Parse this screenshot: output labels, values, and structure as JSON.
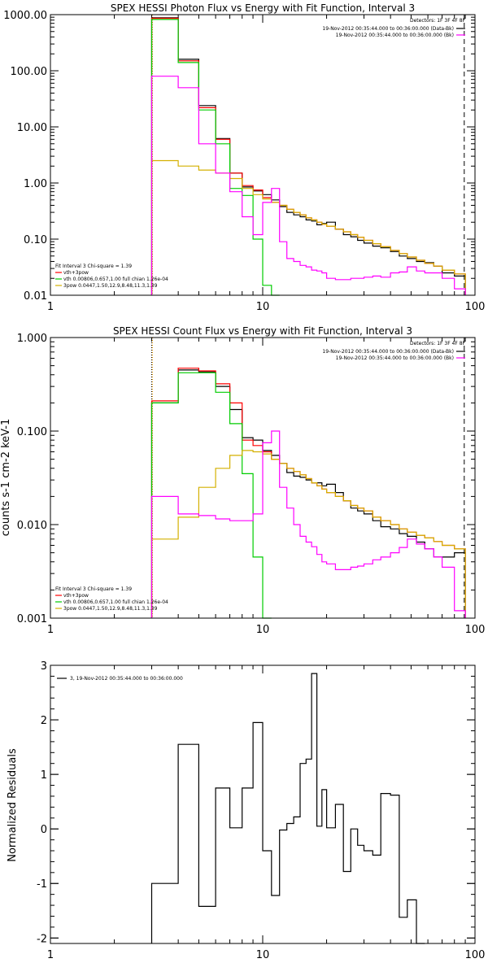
{
  "chart_data": [
    {
      "type": "line",
      "title": "SPEX HESSI Photon Flux vs Energy with Fit Function, Interval 3",
      "xlabel": "",
      "ylabel": "",
      "x_scale": "log",
      "y_scale": "log",
      "xlim": [
        1,
        100
      ],
      "ylim": [
        0.01,
        1000
      ],
      "x_ticks": [
        {
          "v": 1,
          "label": "1"
        },
        {
          "v": 10,
          "label": "10"
        },
        {
          "v": 100,
          "label": "100"
        }
      ],
      "y_ticks": [
        {
          "v": 1000,
          "label": "1000.00"
        },
        {
          "v": 100,
          "label": "100.00"
        },
        {
          "v": 10,
          "label": "10.00"
        },
        {
          "v": 1,
          "label": "1.00"
        },
        {
          "v": 0.1,
          "label": "0.10"
        },
        {
          "v": 0.01,
          "label": "0.01"
        }
      ],
      "vlines": [
        {
          "x": 3,
          "color": "#000000",
          "dash": "1,2"
        },
        {
          "x": 3,
          "color": "#f0a000",
          "dash": "1,2"
        },
        {
          "x": 89,
          "color": "#000000",
          "dash": "6,4"
        }
      ],
      "legend_top": {
        "placement": "top-right",
        "header": "Detectors: 1F 3F 4F 8F",
        "entries": [
          {
            "text": "19-Nov-2012 00:35:44.000 to 00:36:00.000 (Data-Bk)",
            "color": "#000000"
          },
          {
            "text": "19-Nov-2012 00:35:44.000 to 00:36:00.000 (Bk)",
            "color": "#ff00ff"
          }
        ]
      },
      "legend_bottom": {
        "placement": "bottom-left",
        "header": "Fit Interval 3   Chi-square = 1.39",
        "entries": [
          {
            "text": "vth+3pow",
            "color": "#ff0000"
          },
          {
            "text": "vth 0.00806,0.657,1.00   full chian 1.26e-04",
            "color": "#00cc00"
          },
          {
            "text": "3pow 0.0447,1.50,12.9,8.48,11.3,1.39",
            "color": "#d4b000"
          }
        ]
      },
      "edges": [
        3,
        4,
        5,
        6,
        7,
        8,
        9,
        10,
        11,
        12,
        13,
        14,
        15,
        16,
        17,
        18,
        19,
        20,
        22,
        24,
        26,
        28,
        30,
        33,
        36,
        40,
        44,
        48,
        53,
        58,
        64,
        70,
        80,
        90
      ],
      "series": [
        {
          "color": "#000000",
          "values": [
            880,
            160,
            24,
            6.2,
            1.5,
            0.85,
            0.72,
            0.62,
            0.5,
            0.38,
            0.3,
            0.27,
            0.25,
            0.22,
            0.21,
            0.18,
            0.19,
            0.2,
            0.15,
            0.12,
            0.11,
            0.095,
            0.085,
            0.075,
            0.07,
            0.06,
            0.05,
            0.045,
            0.04,
            0.038,
            0.033,
            0.025,
            0.022
          ]
        },
        {
          "color": "#ff0000",
          "values": [
            860,
            150,
            22,
            6,
            1.5,
            0.9,
            0.75,
            0.55,
            0.45,
            0.4,
            0.34,
            0.3,
            0.27,
            0.24,
            0.22,
            0.2,
            0.185,
            0.17,
            0.15,
            0.135,
            0.12,
            0.108,
            0.095,
            0.083,
            0.073,
            0.063,
            0.055,
            0.048,
            0.042,
            0.037,
            0.033,
            0.028,
            0.024
          ]
        },
        {
          "color": "#00cc00",
          "values": [
            820,
            140,
            20,
            5,
            0.8,
            0.6,
            0.1,
            0.015,
            0.01
          ]
        },
        {
          "color": "#d4b000",
          "values": [
            2.5,
            2,
            1.7,
            1.5,
            1.2,
            0.8,
            0.62,
            0.52,
            0.45,
            0.4,
            0.34,
            0.3,
            0.27,
            0.24,
            0.22,
            0.2,
            0.185,
            0.17,
            0.15,
            0.135,
            0.12,
            0.108,
            0.095,
            0.083,
            0.073,
            0.063,
            0.055,
            0.048,
            0.042,
            0.037,
            0.033,
            0.028,
            0.024
          ]
        },
        {
          "color": "#ff00ff",
          "values": [
            80,
            50,
            5,
            1.5,
            0.7,
            0.25,
            0.12,
            0.45,
            0.8,
            0.09,
            0.045,
            0.04,
            0.034,
            0.032,
            0.028,
            0.027,
            0.025,
            0.02,
            0.019,
            0.019,
            0.02,
            0.02,
            0.021,
            0.022,
            0.021,
            0.025,
            0.026,
            0.032,
            0.027,
            0.025,
            0.025,
            0.02,
            0.013
          ]
        }
      ]
    },
    {
      "type": "line",
      "title": "SPEX HESSI Count Flux vs Energy with Fit Function, Interval 3",
      "xlabel": "",
      "ylabel": "counts s-1 cm-2 keV-1",
      "x_scale": "log",
      "y_scale": "log",
      "xlim": [
        1,
        100
      ],
      "ylim": [
        0.001,
        1
      ],
      "x_ticks": [
        {
          "v": 1,
          "label": "1"
        },
        {
          "v": 10,
          "label": "10"
        },
        {
          "v": 100,
          "label": "100"
        }
      ],
      "y_ticks": [
        {
          "v": 1,
          "label": "1.000"
        },
        {
          "v": 0.1,
          "label": "0.100"
        },
        {
          "v": 0.01,
          "label": "0.010"
        },
        {
          "v": 0.001,
          "label": "0.001"
        }
      ],
      "vlines": [
        {
          "x": 3,
          "color": "#000000",
          "dash": "1,2"
        },
        {
          "x": 3,
          "color": "#f0a000",
          "dash": "1,2"
        },
        {
          "x": 89,
          "color": "#000000",
          "dash": "6,4"
        }
      ],
      "legend_top": {
        "placement": "top-right",
        "header": "Detectors: 1F 3F 4F 8F",
        "entries": [
          {
            "text": "19-Nov-2012 00:35:44.000 to 00:36:00.000 (Data-Bk)",
            "color": "#000000"
          },
          {
            "text": "19-Nov-2012 00:35:44.000 to 00:36:00.000 (Bk)",
            "color": "#ff00ff"
          }
        ]
      },
      "legend_bottom": {
        "placement": "bottom-left",
        "header": "Fit Interval 3   Chi-square = 1.39",
        "entries": [
          {
            "text": "vth+3pow",
            "color": "#ff0000"
          },
          {
            "text": "vth 0.00806,0.657,1.00   full chian 1.26e-04",
            "color": "#00cc00"
          },
          {
            "text": "3pow 0.0447,1.50,12.9,8.48,11.3,1.39",
            "color": "#d4b000"
          }
        ]
      },
      "edges": [
        3,
        4,
        5,
        6,
        7,
        8,
        9,
        10,
        11,
        12,
        13,
        14,
        15,
        16,
        17,
        18,
        19,
        20,
        22,
        24,
        26,
        28,
        30,
        33,
        36,
        40,
        44,
        48,
        53,
        58,
        64,
        70,
        80,
        90
      ],
      "series": [
        {
          "color": "#000000",
          "values": [
            0.2,
            0.45,
            0.43,
            0.3,
            0.17,
            0.085,
            0.08,
            0.062,
            0.055,
            0.045,
            0.036,
            0.033,
            0.032,
            0.03,
            0.028,
            0.028,
            0.026,
            0.027,
            0.022,
            0.018,
            0.015,
            0.014,
            0.013,
            0.011,
            0.0095,
            0.009,
            0.008,
            0.0075,
            0.0065,
            0.0055,
            0.0045,
            0.0045,
            0.005
          ]
        },
        {
          "color": "#ff0000",
          "values": [
            0.21,
            0.47,
            0.44,
            0.32,
            0.2,
            0.08,
            0.07,
            0.06,
            0.05,
            0.045,
            0.04,
            0.037,
            0.034,
            0.031,
            0.028,
            0.026,
            0.024,
            0.022,
            0.02,
            0.018,
            0.016,
            0.015,
            0.014,
            0.012,
            0.011,
            0.01,
            0.009,
            0.0083,
            0.0077,
            0.0072,
            0.0066,
            0.006,
            0.0055
          ]
        },
        {
          "color": "#00cc00",
          "values": [
            0.2,
            0.42,
            0.42,
            0.26,
            0.12,
            0.035,
            0.0045,
            0.0008
          ]
        },
        {
          "color": "#d4b000",
          "values": [
            0.007,
            0.012,
            0.025,
            0.04,
            0.055,
            0.062,
            0.06,
            0.057,
            0.05,
            0.045,
            0.04,
            0.037,
            0.034,
            0.031,
            0.028,
            0.026,
            0.024,
            0.022,
            0.02,
            0.018,
            0.016,
            0.015,
            0.014,
            0.012,
            0.011,
            0.01,
            0.009,
            0.0083,
            0.0077,
            0.0072,
            0.0066,
            0.006,
            0.0055
          ]
        },
        {
          "color": "#ff00ff",
          "values": [
            0.02,
            0.013,
            0.0125,
            0.0115,
            0.011,
            0.011,
            0.013,
            0.075,
            0.1,
            0.025,
            0.015,
            0.01,
            0.0075,
            0.0065,
            0.0058,
            0.0048,
            0.004,
            0.0038,
            0.0033,
            0.0033,
            0.0035,
            0.0036,
            0.0038,
            0.0042,
            0.0045,
            0.005,
            0.0057,
            0.007,
            0.0062,
            0.0055,
            0.0045,
            0.0035,
            0.0012
          ]
        }
      ]
    },
    {
      "type": "line",
      "title": "",
      "xlabel": "",
      "ylabel": "Normalized Residuals",
      "x_scale": "log",
      "y_scale": "linear",
      "xlim": [
        1,
        100
      ],
      "ylim": [
        -2.1,
        3
      ],
      "x_ticks": [
        {
          "v": 1,
          "label": "1"
        },
        {
          "v": 10,
          "label": "10"
        },
        {
          "v": 100,
          "label": "100"
        }
      ],
      "y_ticks": [
        {
          "v": 3,
          "label": "3"
        },
        {
          "v": 2,
          "label": "2"
        },
        {
          "v": 1,
          "label": "1"
        },
        {
          "v": 0,
          "label": "0"
        },
        {
          "v": -1,
          "label": "-1"
        },
        {
          "v": -2,
          "label": "-2"
        }
      ],
      "vlines": [],
      "legend_top": {
        "placement": "top-left",
        "header": "",
        "entries": [
          {
            "text": "3, 19-Nov-2012 00:35:44.000 to 00:36:00.000",
            "color": "#000000"
          }
        ]
      },
      "legend_bottom": null,
      "edges": [
        3,
        4,
        5,
        6,
        7,
        8,
        9,
        10,
        11,
        12,
        13,
        14,
        15,
        16,
        17,
        18,
        19,
        20,
        22,
        24,
        26,
        28,
        30,
        33,
        36,
        40,
        44,
        48,
        53,
        58,
        64,
        70,
        80,
        90
      ],
      "series": [
        {
          "color": "#000000",
          "values": [
            -1.0,
            1.55,
            -1.42,
            0.75,
            0.02,
            0.75,
            1.95,
            -0.4,
            -1.22,
            -0.02,
            0.1,
            0.22,
            1.2,
            1.28,
            2.85,
            0.05,
            0.72,
            0.02,
            0.45,
            -0.78,
            0.0,
            -0.3,
            -0.4,
            -0.48,
            0.65,
            0.62,
            -1.62,
            -1.3,
            -2.1
          ]
        }
      ]
    }
  ]
}
